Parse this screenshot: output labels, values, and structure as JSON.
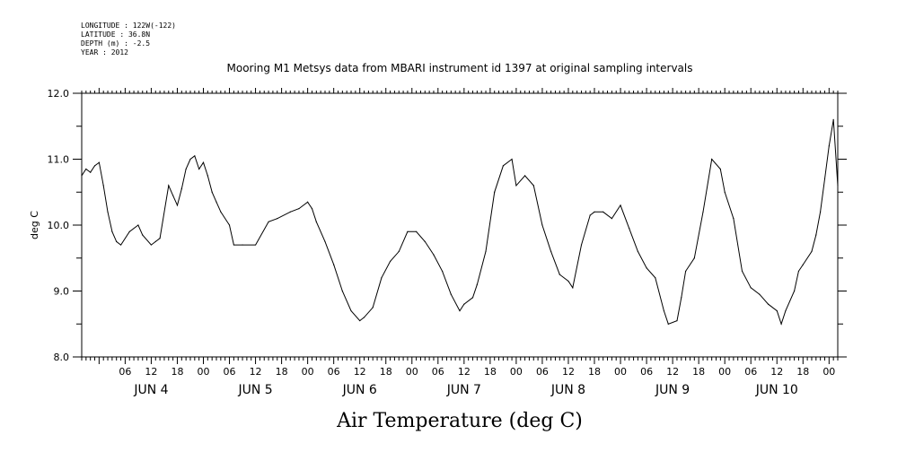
{
  "header": {
    "longitude": "LONGITUDE : 122W(-122)",
    "latitude": "LATITUDE : 36.8N",
    "depth": "DEPTH (m) : -2.5",
    "year": "YEAR : 2012"
  },
  "chart_data": {
    "type": "line",
    "title": "Mooring M1 Metsys data from MBARI instrument id 1397 at original sampling intervals",
    "xlabel": "Air Temperature (deg C)",
    "ylabel": "deg C",
    "xlim": [
      "2012-06-03T20:00",
      "2012-06-11T02:00"
    ],
    "ylim": [
      8.0,
      12.0
    ],
    "y_ticks": [
      "8.0",
      "9.0",
      "10.0",
      "11.0",
      "12.0"
    ],
    "x_hour_ticks": [
      {
        "t": "2012-06-04T06:00",
        "label": "06"
      },
      {
        "t": "2012-06-04T12:00",
        "label": "12"
      },
      {
        "t": "2012-06-04T18:00",
        "label": "18"
      },
      {
        "t": "2012-06-05T00:00",
        "label": "00"
      },
      {
        "t": "2012-06-05T06:00",
        "label": "06"
      },
      {
        "t": "2012-06-05T12:00",
        "label": "12"
      },
      {
        "t": "2012-06-05T18:00",
        "label": "18"
      },
      {
        "t": "2012-06-06T00:00",
        "label": "00"
      },
      {
        "t": "2012-06-06T06:00",
        "label": "06"
      },
      {
        "t": "2012-06-06T12:00",
        "label": "12"
      },
      {
        "t": "2012-06-06T18:00",
        "label": "18"
      },
      {
        "t": "2012-06-07T00:00",
        "label": "00"
      },
      {
        "t": "2012-06-07T06:00",
        "label": "06"
      },
      {
        "t": "2012-06-07T12:00",
        "label": "12"
      },
      {
        "t": "2012-06-07T18:00",
        "label": "18"
      },
      {
        "t": "2012-06-08T00:00",
        "label": "00"
      },
      {
        "t": "2012-06-08T06:00",
        "label": "06"
      },
      {
        "t": "2012-06-08T12:00",
        "label": "12"
      },
      {
        "t": "2012-06-08T18:00",
        "label": "18"
      },
      {
        "t": "2012-06-09T00:00",
        "label": "00"
      },
      {
        "t": "2012-06-09T06:00",
        "label": "06"
      },
      {
        "t": "2012-06-09T12:00",
        "label": "12"
      },
      {
        "t": "2012-06-09T18:00",
        "label": "18"
      },
      {
        "t": "2012-06-10T00:00",
        "label": "00"
      },
      {
        "t": "2012-06-10T06:00",
        "label": "06"
      },
      {
        "t": "2012-06-10T12:00",
        "label": "12"
      },
      {
        "t": "2012-06-10T18:00",
        "label": "18"
      },
      {
        "t": "2012-06-11T00:00",
        "label": "00"
      }
    ],
    "day_labels": [
      {
        "t": "2012-06-04T12:00",
        "label": "JUN  4"
      },
      {
        "t": "2012-06-05T12:00",
        "label": "JUN  5"
      },
      {
        "t": "2012-06-06T12:00",
        "label": "JUN  6"
      },
      {
        "t": "2012-06-07T12:00",
        "label": "JUN  7"
      },
      {
        "t": "2012-06-08T12:00",
        "label": "JUN  8"
      },
      {
        "t": "2012-06-09T12:00",
        "label": "JUN  9"
      },
      {
        "t": "2012-06-10T12:00",
        "label": "JUN 10"
      }
    ],
    "grid": false,
    "series": [
      {
        "color": "#000000",
        "x": [
          "2012-06-03T20:00",
          "2012-06-03T21:00",
          "2012-06-03T22:00",
          "2012-06-03T23:00",
          "2012-06-04T00:00",
          "2012-06-04T01:00",
          "2012-06-04T02:00",
          "2012-06-04T03:00",
          "2012-06-04T04:00",
          "2012-06-04T05:00",
          "2012-06-04T07:00",
          "2012-06-04T09:00",
          "2012-06-04T10:00",
          "2012-06-04T12:00",
          "2012-06-04T13:00",
          "2012-06-04T14:00",
          "2012-06-04T16:00",
          "2012-06-04T17:00",
          "2012-06-04T18:00",
          "2012-06-04T19:00",
          "2012-06-04T20:00",
          "2012-06-04T21:00",
          "2012-06-04T22:00",
          "2012-06-04T23:00",
          "2012-06-05T00:00",
          "2012-06-05T01:00",
          "2012-06-05T02:00",
          "2012-06-05T03:00",
          "2012-06-05T04:00",
          "2012-06-05T06:00",
          "2012-06-05T07:00",
          "2012-06-05T09:00",
          "2012-06-05T12:00",
          "2012-06-05T15:00",
          "2012-06-05T17:00",
          "2012-06-05T20:00",
          "2012-06-05T22:00",
          "2012-06-06T00:00",
          "2012-06-06T01:00",
          "2012-06-06T02:00",
          "2012-06-06T04:00",
          "2012-06-06T06:00",
          "2012-06-06T08:00",
          "2012-06-06T10:00",
          "2012-06-06T12:00",
          "2012-06-06T13:00",
          "2012-06-06T15:00",
          "2012-06-06T17:00",
          "2012-06-06T19:00",
          "2012-06-06T21:00",
          "2012-06-06T23:00",
          "2012-06-07T01:00",
          "2012-06-07T03:00",
          "2012-06-07T05:00",
          "2012-06-07T07:00",
          "2012-06-07T09:00",
          "2012-06-07T11:00",
          "2012-06-07T12:00",
          "2012-06-07T14:00",
          "2012-06-07T15:00",
          "2012-06-07T17:00",
          "2012-06-07T19:00",
          "2012-06-07T21:00",
          "2012-06-07T23:00",
          "2012-06-08T00:00",
          "2012-06-08T02:00",
          "2012-06-08T04:00",
          "2012-06-08T06:00",
          "2012-06-08T08:00",
          "2012-06-08T10:00",
          "2012-06-08T12:00",
          "2012-06-08T13:00",
          "2012-06-08T15:00",
          "2012-06-08T17:00",
          "2012-06-08T18:00",
          "2012-06-08T20:00",
          "2012-06-08T22:00",
          "2012-06-09T00:00",
          "2012-06-09T02:00",
          "2012-06-09T04:00",
          "2012-06-09T06:00",
          "2012-06-09T08:00",
          "2012-06-09T10:00",
          "2012-06-09T11:00",
          "2012-06-09T13:00",
          "2012-06-09T14:00",
          "2012-06-09T15:00",
          "2012-06-09T17:00",
          "2012-06-09T19:00",
          "2012-06-09T21:00",
          "2012-06-09T23:00",
          "2012-06-10T00:00",
          "2012-06-10T02:00",
          "2012-06-10T04:00",
          "2012-06-10T06:00",
          "2012-06-10T08:00",
          "2012-06-10T10:00",
          "2012-06-10T12:00",
          "2012-06-10T13:00",
          "2012-06-10T14:00",
          "2012-06-10T16:00",
          "2012-06-10T17:00",
          "2012-06-10T18:00",
          "2012-06-10T20:00",
          "2012-06-10T21:00",
          "2012-06-10T22:00",
          "2012-06-10T23:00",
          "2012-06-11T00:00",
          "2012-06-11T01:00",
          "2012-06-11T02:00"
        ],
        "y": [
          10.75,
          10.85,
          10.8,
          10.9,
          10.95,
          10.6,
          10.2,
          9.9,
          9.75,
          9.7,
          9.9,
          10.0,
          9.85,
          9.7,
          9.75,
          9.8,
          10.6,
          10.45,
          10.3,
          10.55,
          10.85,
          11.0,
          11.05,
          10.85,
          10.95,
          10.75,
          10.5,
          10.35,
          10.2,
          10.0,
          9.7,
          9.7,
          9.7,
          10.05,
          10.1,
          10.2,
          10.25,
          10.35,
          10.25,
          10.05,
          9.75,
          9.4,
          9.0,
          8.7,
          8.55,
          8.6,
          8.75,
          9.2,
          9.45,
          9.6,
          9.9,
          9.9,
          9.75,
          9.55,
          9.3,
          8.95,
          8.7,
          8.8,
          8.9,
          9.1,
          9.6,
          10.5,
          10.9,
          11.0,
          10.6,
          10.75,
          10.6,
          10.0,
          9.6,
          9.25,
          9.15,
          9.05,
          9.7,
          10.15,
          10.2,
          10.2,
          10.1,
          10.3,
          9.95,
          9.6,
          9.35,
          9.2,
          8.7,
          8.5,
          8.55,
          8.9,
          9.3,
          9.5,
          10.2,
          11.0,
          10.85,
          10.5,
          10.1,
          9.3,
          9.05,
          8.95,
          8.8,
          8.7,
          8.5,
          8.7,
          9.0,
          9.3,
          9.4,
          9.6,
          9.85,
          10.2,
          10.7,
          11.2,
          11.6,
          10.6
        ]
      }
    ]
  }
}
